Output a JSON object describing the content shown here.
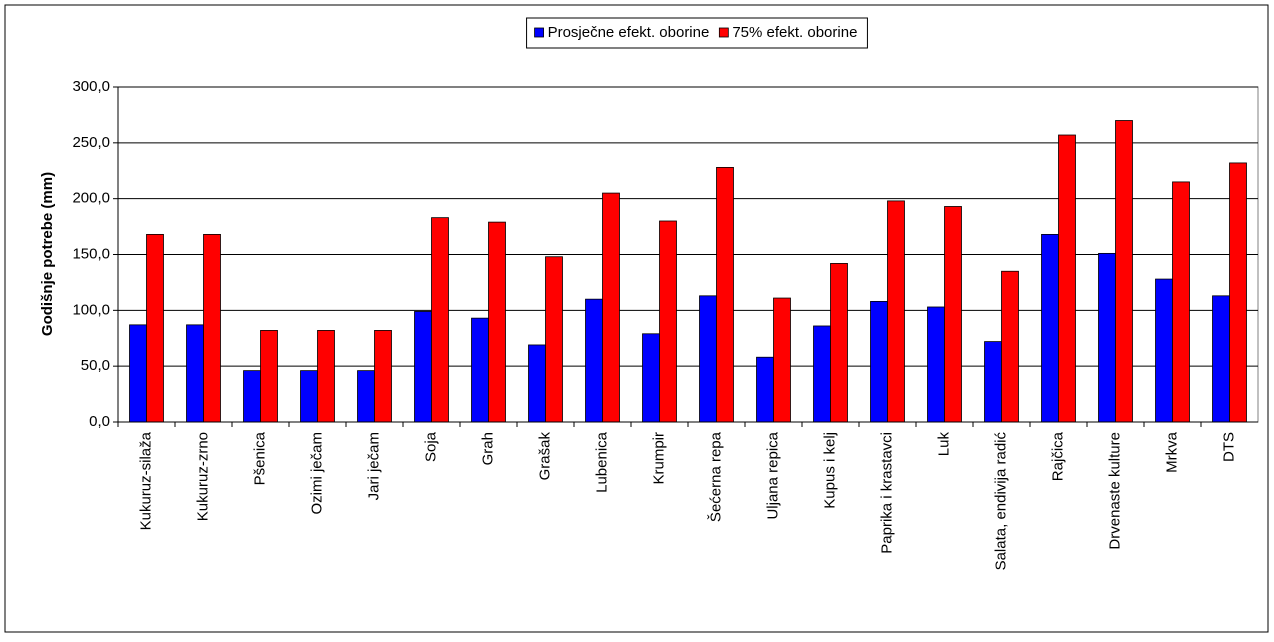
{
  "chart_data": {
    "type": "bar",
    "y_label": "Godišnje potrebe (mm)",
    "categories": [
      "Kukuruz-silaža",
      "Kukuruz-zrno",
      "Pšenica",
      "Ozimi ječam",
      "Jari ječam",
      "Soja",
      "Grah",
      "Grašak",
      "Lubenica",
      "Krumpir",
      "Šećerna repa",
      "Uljana repica",
      "Kupus i kelj",
      "Paprika i krastavci",
      "Luk",
      "Salata, endivija radić",
      "Rajčica",
      "Drvenaste kulture",
      "Mrkva",
      "DTS"
    ],
    "series": [
      {
        "name": "Prosječne efekt. oborine",
        "color": "#0000ff",
        "values": [
          87,
          87,
          46,
          46,
          46,
          99,
          93,
          69,
          110,
          79,
          113,
          58,
          86,
          108,
          103,
          72,
          168,
          151,
          128,
          113
        ]
      },
      {
        "name": "75% efekt. oborine",
        "color": "#ff0000",
        "values": [
          168,
          168,
          82,
          82,
          82,
          183,
          179,
          148,
          205,
          180,
          228,
          111,
          142,
          198,
          193,
          135,
          257,
          270,
          215,
          232
        ]
      }
    ],
    "ylim": [
      0,
      300
    ],
    "yticks": [
      {
        "value": 0,
        "label": "0,0"
      },
      {
        "value": 50,
        "label": "50,0"
      },
      {
        "value": 100,
        "label": "100,0"
      },
      {
        "value": 150,
        "label": "150,0"
      },
      {
        "value": 200,
        "label": "200,0"
      },
      {
        "value": 250,
        "label": "250,0"
      },
      {
        "value": 300,
        "label": "300,0"
      }
    ],
    "grid": true,
    "legend": "top"
  }
}
